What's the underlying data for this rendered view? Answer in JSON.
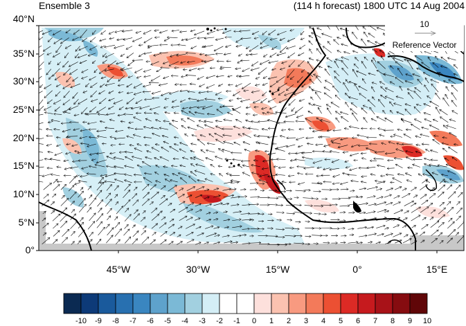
{
  "header": {
    "left_title": "Ensemble 3",
    "right_title": "(114 h forecast) 1800 UTC 14 Aug 2004"
  },
  "map": {
    "projection": "cylindrical equidistant",
    "lat_range": [
      0,
      40
    ],
    "lon_range": [
      -60,
      20
    ],
    "lat_ticks": [
      "0°",
      "5°N",
      "10°N",
      "15°N",
      "20°N",
      "25°N",
      "30°N",
      "35°N",
      "40°N"
    ],
    "lon_ticks": [
      "45°W",
      "30°W",
      "15°W",
      "0°",
      "15°E"
    ],
    "land_missing_color": "#c8c8c8",
    "coastline_color": "#000000"
  },
  "reference_vector": {
    "magnitude": "10",
    "label": "Reference Vector"
  },
  "colorbar": {
    "labels": [
      "-10",
      "-9",
      "-8",
      "-7",
      "-6",
      "-5",
      "-4",
      "-3",
      "-2",
      "-1",
      "0",
      "1",
      "2",
      "3",
      "4",
      "5",
      "6",
      "7",
      "8",
      "9",
      "10"
    ],
    "colors": [
      "#0b2a52",
      "#0d3a78",
      "#1a5a9c",
      "#2870b0",
      "#3a86c0",
      "#5ea2cc",
      "#7bb9d6",
      "#a2d0e0",
      "#d4eef6",
      "#ffffff",
      "#ffffff",
      "#fde0dc",
      "#fbc2b0",
      "#f89a80",
      "#f37a5a",
      "#ec5033",
      "#dc2a25",
      "#c61a1e",
      "#a81218",
      "#860c10",
      "#600608"
    ]
  }
}
